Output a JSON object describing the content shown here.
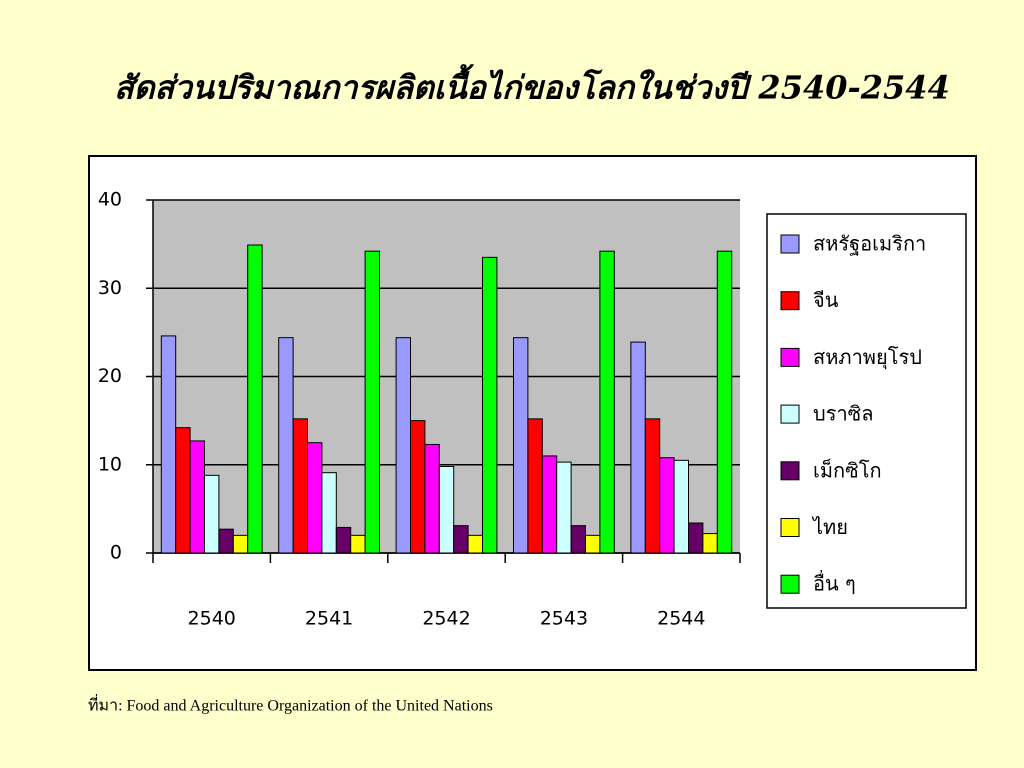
{
  "chart_data": {
    "type": "bar",
    "title": "สัดส่วนปริมาณการผลิตเนื้อไก่ของโลกในช่วงปี 2540-2544",
    "source": "ที่มา:  Food and Agriculture Organization of the United Nations",
    "categories": [
      "2540",
      "2541",
      "2542",
      "2543",
      "2544"
    ],
    "series": [
      {
        "name": "สหรัฐอเมริกา",
        "color": "#9999ff",
        "values": [
          24.6,
          24.4,
          24.4,
          24.4,
          23.9
        ]
      },
      {
        "name": "จีน",
        "color": "#ff0000",
        "values": [
          14.2,
          15.2,
          15.0,
          15.2,
          15.2
        ]
      },
      {
        "name": "สหภาพยุโรป",
        "color": "#ff00ff",
        "values": [
          12.7,
          12.5,
          12.3,
          11.0,
          10.8
        ]
      },
      {
        "name": "บราซิล",
        "color": "#ccffff",
        "values": [
          8.8,
          9.1,
          9.8,
          10.3,
          10.5
        ]
      },
      {
        "name": "เม็กซิโก",
        "color": "#660066",
        "values": [
          2.7,
          2.9,
          3.1,
          3.1,
          3.4
        ]
      },
      {
        "name": "ไทย",
        "color": "#ffff00",
        "values": [
          2.0,
          2.0,
          2.0,
          2.0,
          2.2
        ]
      },
      {
        "name": "อื่น ๆ",
        "color": "#00ff00",
        "values": [
          34.9,
          34.2,
          33.5,
          34.2,
          34.2
        ]
      }
    ],
    "ylim": [
      0,
      40
    ],
    "yticks": [
      0,
      10,
      20,
      30,
      40
    ],
    "grid": true,
    "legend": "right"
  }
}
